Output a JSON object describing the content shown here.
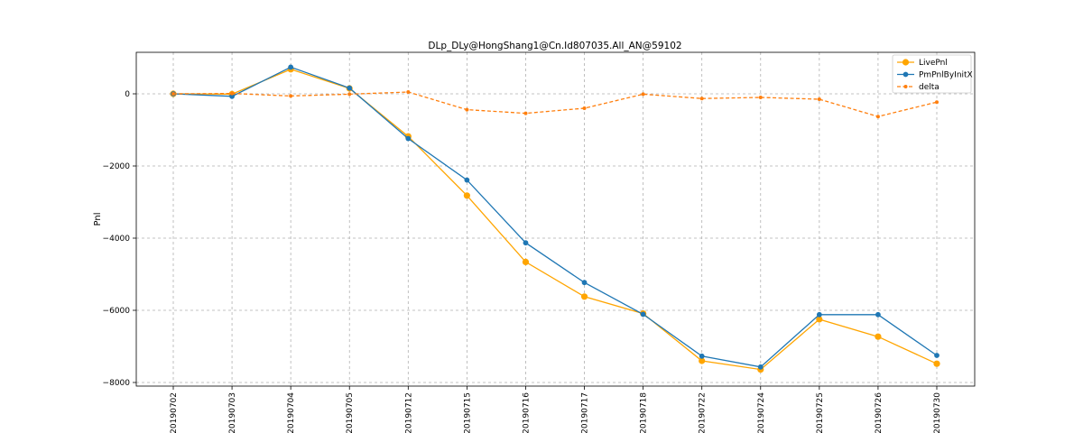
{
  "chart_data": {
    "type": "line",
    "title": "DLp_DLy@HongShang1@Cn.Id807035.All_AN@59102",
    "xlabel": "",
    "ylabel": "Pnl",
    "categories": [
      "20190702",
      "20190703",
      "20190704",
      "20190705",
      "20190712",
      "20190715",
      "20190716",
      "20190717",
      "20190718",
      "20190722",
      "20190724",
      "20190725",
      "20190726",
      "20190730"
    ],
    "ylim": [
      -8100,
      1150
    ],
    "yticks": [
      0,
      -2000,
      -4000,
      -6000,
      -8000
    ],
    "grid": true,
    "legend_position": "top-right",
    "series": [
      {
        "name": "LivePnl",
        "color": "#ffa500",
        "style": "solid",
        "marker": "large-circle",
        "values": [
          0,
          -10,
          680,
          150,
          -1180,
          -2820,
          -4660,
          -5620,
          -6090,
          -7400,
          -7640,
          -6250,
          -6730,
          -7480
        ]
      },
      {
        "name": "PmPnlByInitX",
        "color": "#1f77b4",
        "style": "solid",
        "marker": "circle",
        "values": [
          0,
          -70,
          740,
          160,
          -1240,
          -2390,
          -4130,
          -5230,
          -6110,
          -7270,
          -7570,
          -6120,
          -6120,
          -7250
        ]
      },
      {
        "name": "delta",
        "color": "#ff7f0e",
        "style": "dashed",
        "marker": "small-circle",
        "values": [
          0,
          10,
          -60,
          -10,
          50,
          -440,
          -540,
          -400,
          -10,
          -130,
          -100,
          -150,
          -630,
          -230
        ]
      }
    ]
  }
}
